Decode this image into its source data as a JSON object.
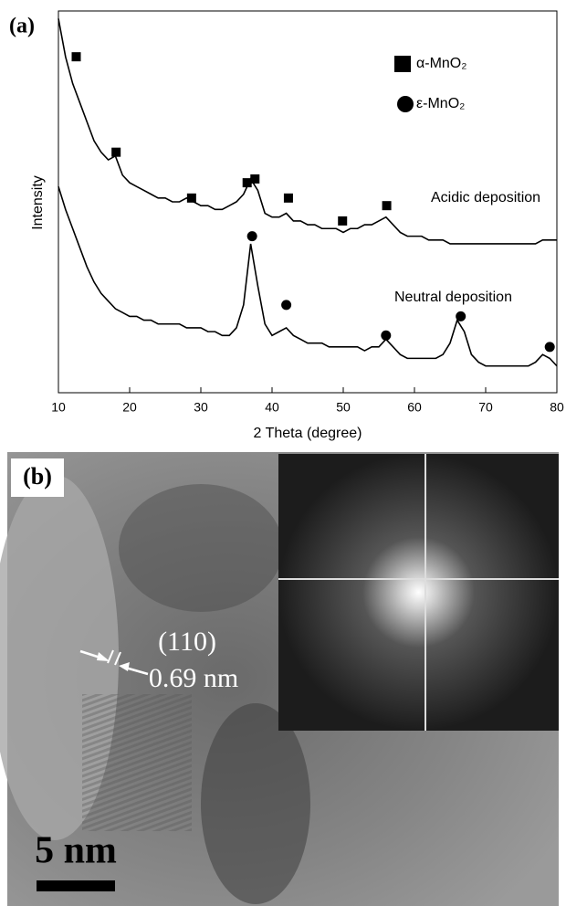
{
  "chart_data": {
    "type": "line",
    "panel_label": "(a)",
    "x_label": "2 Theta (degree)",
    "y_label": "Intensity",
    "xlim": [
      10,
      80
    ],
    "xticks": [
      10,
      20,
      30,
      40,
      50,
      60,
      70,
      80
    ],
    "ylim": [
      0,
      100
    ],
    "x": [
      10,
      11,
      12,
      13,
      14,
      15,
      16,
      17,
      18,
      19,
      20,
      21,
      22,
      23,
      24,
      25,
      26,
      27,
      28,
      29,
      30,
      31,
      32,
      33,
      34,
      35,
      36,
      37,
      38,
      39,
      40,
      41,
      42,
      43,
      44,
      45,
      46,
      47,
      48,
      49,
      50,
      51,
      52,
      53,
      54,
      55,
      56,
      57,
      58,
      59,
      60,
      61,
      62,
      63,
      64,
      65,
      66,
      67,
      68,
      69,
      70,
      71,
      72,
      73,
      74,
      75,
      76,
      77,
      78,
      79,
      80
    ],
    "series": [
      {
        "name": "Acidic deposition",
        "color": "#000000",
        "values": [
          98,
          88,
          81,
          76,
          71,
          66,
          63,
          61,
          62,
          57,
          55,
          54,
          53,
          52,
          51,
          51,
          50,
          50,
          51,
          50,
          49,
          49,
          48,
          48,
          49,
          50,
          52,
          56,
          53,
          47,
          46,
          46,
          47,
          45,
          45,
          44,
          44,
          43,
          43,
          43,
          42,
          43,
          43,
          44,
          44,
          45,
          46,
          44,
          42,
          41,
          41,
          41,
          40,
          40,
          40,
          39,
          39,
          39,
          39,
          39,
          39,
          39,
          39,
          39,
          39,
          39,
          39,
          39,
          40,
          40,
          40
        ]
      },
      {
        "name": "Neutral deposition",
        "color": "#000000",
        "values": [
          54,
          48,
          43,
          38,
          33,
          29,
          26,
          24,
          22,
          21,
          20,
          20,
          19,
          19,
          18,
          18,
          18,
          18,
          17,
          17,
          17,
          16,
          16,
          15,
          15,
          17,
          23,
          39,
          28,
          18,
          15,
          16,
          17,
          15,
          14,
          13,
          13,
          13,
          12,
          12,
          12,
          12,
          12,
          11,
          12,
          12,
          14,
          12,
          10,
          9,
          9,
          9,
          9,
          9,
          10,
          13,
          19,
          16,
          10,
          8,
          7,
          7,
          7,
          7,
          7,
          7,
          7,
          8,
          10,
          9,
          7
        ]
      }
    ],
    "markers": [
      {
        "name": "α-MnO₂",
        "shape": "square",
        "color": "#000000",
        "x": [
          12.5,
          18.1,
          28.7,
          36.5,
          37.6,
          42.3,
          49.9,
          56.1
        ],
        "values": [
          88,
          63,
          51,
          55,
          56,
          51,
          45,
          49
        ]
      },
      {
        "name": "ε-MnO₂",
        "shape": "circle",
        "color": "#000000",
        "x": [
          37.2,
          42.0,
          56.0,
          66.5,
          79.0
        ],
        "values": [
          41,
          23,
          15,
          20,
          12
        ]
      }
    ]
  },
  "image": {
    "panel_label": "(b)",
    "plane": "(110)",
    "spacing": "0.69 nm",
    "scale_bar": "5 nm"
  }
}
